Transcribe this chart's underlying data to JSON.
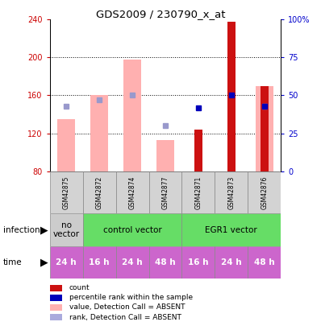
{
  "title": "GDS2009 / 230790_x_at",
  "samples": [
    "GSM42875",
    "GSM42872",
    "GSM42874",
    "GSM42877",
    "GSM42871",
    "GSM42873",
    "GSM42876"
  ],
  "ylim_left": [
    80,
    240
  ],
  "ylim_right": [
    0,
    100
  ],
  "yticks_left": [
    80,
    120,
    160,
    200,
    240
  ],
  "yticks_right": [
    0,
    25,
    50,
    75,
    100
  ],
  "yticklabels_right": [
    "0",
    "25",
    "50",
    "75",
    "100%"
  ],
  "bar_values_pink": [
    135,
    160,
    198,
    113,
    null,
    null,
    170
  ],
  "bar_values_red": [
    null,
    null,
    null,
    null,
    124,
    238,
    170
  ],
  "rank_blue_dark_pct": [
    null,
    null,
    null,
    null,
    42,
    50,
    43
  ],
  "rank_blue_light_pct": [
    43,
    47,
    50,
    30,
    null,
    null,
    43
  ],
  "infection_groups": [
    {
      "label": "no\nvector",
      "start": 0,
      "end": 1,
      "color": "#cccccc"
    },
    {
      "label": "control vector",
      "start": 1,
      "end": 4,
      "color": "#66dd66"
    },
    {
      "label": "EGR1 vector",
      "start": 4,
      "end": 7,
      "color": "#66dd66"
    }
  ],
  "time_labels": [
    "24 h",
    "16 h",
    "24 h",
    "48 h",
    "16 h",
    "24 h",
    "48 h"
  ],
  "time_color": "#cc66cc",
  "pink_color": "#ffb0b0",
  "red_color": "#cc1111",
  "blue_dark_color": "#0000bb",
  "blue_light_color": "#9999cc",
  "left_axis_color": "#cc0000",
  "right_axis_color": "#0000cc",
  "legend_items": [
    {
      "color": "#cc1111",
      "label": "count"
    },
    {
      "color": "#0000bb",
      "label": "percentile rank within the sample"
    },
    {
      "color": "#ffb0b0",
      "label": "value, Detection Call = ABSENT"
    },
    {
      "color": "#aaaadd",
      "label": "rank, Detection Call = ABSENT"
    }
  ]
}
